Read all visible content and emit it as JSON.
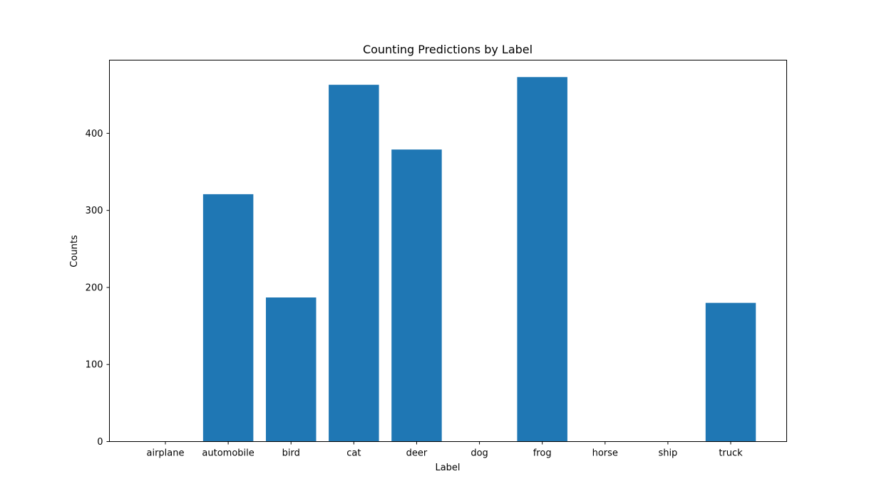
{
  "chart_data": {
    "type": "bar",
    "title": "Counting Predictions by Label",
    "xlabel": "Label",
    "ylabel": "Counts",
    "categories": [
      "airplane",
      "automobile",
      "bird",
      "cat",
      "deer",
      "dog",
      "frog",
      "horse",
      "ship",
      "truck"
    ],
    "values": [
      0,
      321,
      187,
      463,
      379,
      0,
      473,
      0,
      0,
      180
    ],
    "ylim": [
      0,
      495
    ],
    "yticks": [
      0,
      100,
      200,
      300,
      400
    ],
    "grid": false,
    "legend": "none",
    "bar_color": "#1f77b4"
  }
}
